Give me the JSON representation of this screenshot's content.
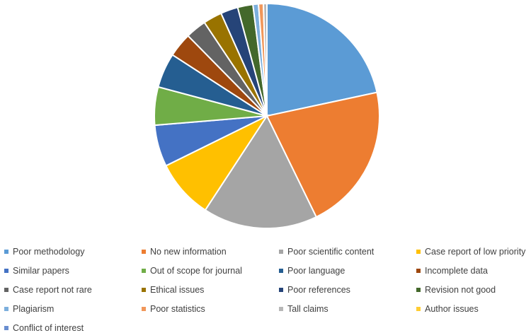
{
  "chart_data": {
    "type": "pie",
    "title": "",
    "categories": [
      "Poor methodology",
      "No new information",
      "Poor scientific content",
      "Case report of low priority",
      "Similar papers",
      "Out of scope for journal",
      "Poor language",
      "Incomplete data",
      "Case report not rare",
      "Ethical issues",
      "Poor references",
      "Revision not good",
      "Plagiarism",
      "Poor statistics",
      "Tall claims",
      "Author issues",
      "Conflict of interest"
    ],
    "values": [
      21.7,
      21.2,
      16.5,
      8.5,
      6.0,
      5.5,
      5.0,
      3.5,
      3.0,
      2.7,
      2.5,
      2.2,
      0.8,
      0.7,
      0.5,
      0.0,
      0.0
    ],
    "colors": [
      "#5b9bd5",
      "#ed7d31",
      "#a5a5a5",
      "#ffc000",
      "#4472c4",
      "#70ad47",
      "#255e91",
      "#9e480e",
      "#636363",
      "#997300",
      "#264478",
      "#43682b",
      "#7cafdd",
      "#f1975a",
      "#b7b7b7",
      "#ffcd33",
      "#698ed0"
    ],
    "legend_position": "bottom",
    "start_angle_deg": 0,
    "direction": "clockwise"
  }
}
